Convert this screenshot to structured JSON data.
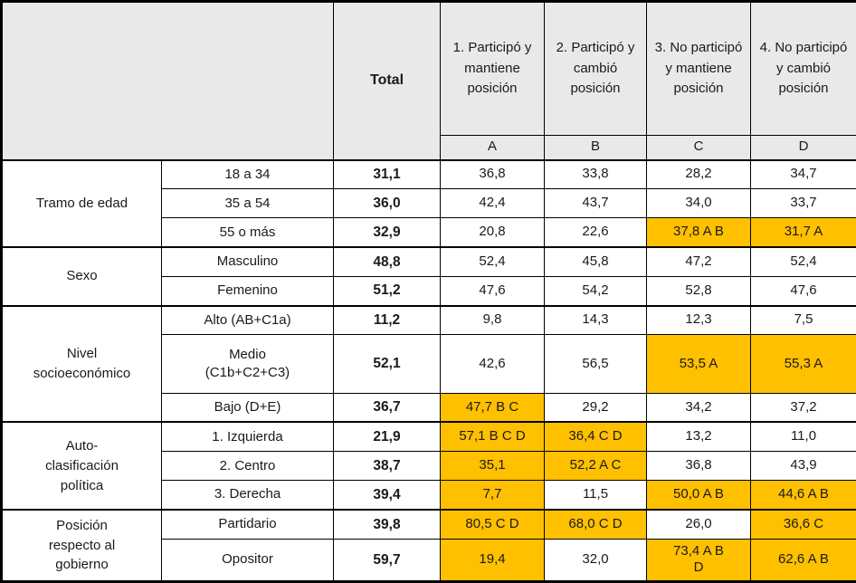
{
  "chart_data": {
    "type": "table",
    "title": "",
    "column_headers": {
      "total": "Total",
      "groups": [
        {
          "label": "1. Participó y mantiene posición",
          "letter": "A"
        },
        {
          "label": "2. Participó y cambió posición",
          "letter": "B"
        },
        {
          "label": "3. No participó y mantiene posición",
          "letter": "C"
        },
        {
          "label": "4. No participó y cambió posición",
          "letter": "D"
        }
      ]
    },
    "sections": [
      {
        "category": "Tramo de edad",
        "rows": [
          {
            "label": "18 a 34",
            "total": "31,1",
            "cells": [
              {
                "value": "36,8",
                "highlight": false
              },
              {
                "value": "33,8",
                "highlight": false
              },
              {
                "value": "28,2",
                "highlight": false
              },
              {
                "value": "34,7",
                "highlight": false
              }
            ]
          },
          {
            "label": "35 a 54",
            "total": "36,0",
            "cells": [
              {
                "value": "42,4",
                "highlight": false
              },
              {
                "value": "43,7",
                "highlight": false
              },
              {
                "value": "34,0",
                "highlight": false
              },
              {
                "value": "33,7",
                "highlight": false
              }
            ]
          },
          {
            "label": "55 o más",
            "total": "32,9",
            "cells": [
              {
                "value": "20,8",
                "highlight": false
              },
              {
                "value": "22,6",
                "highlight": false
              },
              {
                "value": "37,8 A B",
                "highlight": true
              },
              {
                "value": "31,7 A",
                "highlight": true
              }
            ]
          }
        ]
      },
      {
        "category": "Sexo",
        "rows": [
          {
            "label": "Masculino",
            "total": "48,8",
            "cells": [
              {
                "value": "52,4",
                "highlight": false
              },
              {
                "value": "45,8",
                "highlight": false
              },
              {
                "value": "47,2",
                "highlight": false
              },
              {
                "value": "52,4",
                "highlight": false
              }
            ]
          },
          {
            "label": "Femenino",
            "total": "51,2",
            "cells": [
              {
                "value": "47,6",
                "highlight": false
              },
              {
                "value": "54,2",
                "highlight": false
              },
              {
                "value": "52,8",
                "highlight": false
              },
              {
                "value": "47,6",
                "highlight": false
              }
            ]
          }
        ]
      },
      {
        "category": "Nivel socioeconómico",
        "rows": [
          {
            "label": "Alto (AB+C1a)",
            "total": "11,2",
            "cells": [
              {
                "value": "9,8",
                "highlight": false
              },
              {
                "value": "14,3",
                "highlight": false
              },
              {
                "value": "12,3",
                "highlight": false
              },
              {
                "value": "7,5",
                "highlight": false
              }
            ]
          },
          {
            "label": "Medio (C1b+C2+C3)",
            "label_wrap": true,
            "tall": 2,
            "total": "52,1",
            "cells": [
              {
                "value": "42,6",
                "highlight": false
              },
              {
                "value": "56,5",
                "highlight": false
              },
              {
                "value": "53,5 A",
                "highlight": true
              },
              {
                "value": "55,3 A",
                "highlight": true
              }
            ]
          },
          {
            "label": "Bajo (D+E)",
            "total": "36,7",
            "cells": [
              {
                "value": "47,7 B C",
                "highlight": true
              },
              {
                "value": "29,2",
                "highlight": false
              },
              {
                "value": "34,2",
                "highlight": false
              },
              {
                "value": "37,2",
                "highlight": false
              }
            ]
          }
        ]
      },
      {
        "category": "Auto-clasificación política",
        "rows": [
          {
            "label": "1. Izquierda",
            "total": "21,9",
            "cells": [
              {
                "value": "57,1 B C D",
                "highlight": true
              },
              {
                "value": "36,4 C D",
                "highlight": true
              },
              {
                "value": "13,2",
                "highlight": false
              },
              {
                "value": "11,0",
                "highlight": false
              }
            ]
          },
          {
            "label": "2. Centro",
            "total": "38,7",
            "cells": [
              {
                "value": "35,1",
                "highlight": true
              },
              {
                "value": "52,2 A C",
                "highlight": true
              },
              {
                "value": "36,8",
                "highlight": false
              },
              {
                "value": "43,9",
                "highlight": false
              }
            ]
          },
          {
            "label": "3. Derecha",
            "total": "39,4",
            "cells": [
              {
                "value": "7,7",
                "highlight": true
              },
              {
                "value": "11,5",
                "highlight": false
              },
              {
                "value": "50,0 A B",
                "highlight": true
              },
              {
                "value": "44,6 A B",
                "highlight": true
              }
            ]
          }
        ]
      },
      {
        "category": "Posición respecto al gobierno",
        "rows": [
          {
            "label": "Partidario",
            "total": "39,8",
            "cells": [
              {
                "value": "80,5 C D",
                "highlight": true
              },
              {
                "value": "68,0 C D",
                "highlight": true
              },
              {
                "value": "26,0",
                "highlight": false
              },
              {
                "value": "36,6 C",
                "highlight": true
              }
            ]
          },
          {
            "label": "Opositor",
            "tall": 1,
            "total": "59,7",
            "cells": [
              {
                "value": "19,4",
                "highlight": true
              },
              {
                "value": "32,0",
                "highlight": false
              },
              {
                "value": "73,4 A B D",
                "highlight": true,
                "wrap": true
              },
              {
                "value": "62,6 A B",
                "highlight": true
              }
            ]
          }
        ]
      }
    ],
    "colors": {
      "highlight": "#FFC000",
      "header_bg": "#E9E9E9",
      "border": "#000000"
    }
  }
}
